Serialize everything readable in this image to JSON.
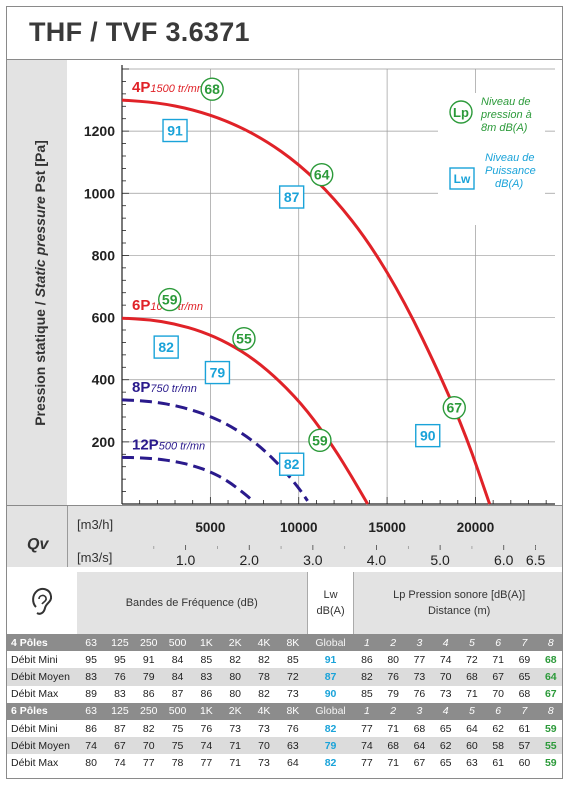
{
  "title": "THF / TVF 3.6371",
  "chart_data": {
    "type": "line",
    "ylabel_regular": "Pression statique / ",
    "ylabel_italic": "Static pressure",
    "ylabel_unit": " Pst [Pa]",
    "ylim": [
      0,
      1400
    ],
    "y_ticks": [
      "1200",
      "1000",
      "800",
      "600",
      "400",
      "200"
    ],
    "x_axis_main": {
      "label": "[m3/h]",
      "ticks": [
        "5000",
        "10000",
        "15000",
        "20000"
      ],
      "xlim": [
        0,
        24500
      ]
    },
    "x_axis_secondary": {
      "label": "[m3/s]",
      "ticks": [
        "1.0",
        "2.0",
        "3.0",
        "4.0",
        "5.0",
        "6.0",
        "6.5"
      ]
    },
    "qv_label": "Qv",
    "series": [
      {
        "name": "4P",
        "speed": "1500 tr/mn",
        "color": "#e02228",
        "style": "solid",
        "x": [
          0,
          2000,
          4000,
          6000,
          8000,
          10000,
          12000,
          14000,
          16000,
          18000,
          19500,
          20800
        ],
        "y": [
          1300,
          1292,
          1270,
          1232,
          1175,
          1095,
          985,
          840,
          650,
          415,
          215,
          0
        ]
      },
      {
        "name": "6P",
        "speed": "1000 tr/mn",
        "color": "#e02228",
        "style": "solid",
        "x": [
          0,
          1500,
          3000,
          4500,
          6000,
          7500,
          9000,
          10500,
          12000,
          13000,
          13900
        ],
        "y": [
          598,
          594,
          580,
          556,
          518,
          465,
          392,
          300,
          180,
          88,
          0
        ]
      },
      {
        "name": "8P",
        "speed": "750 tr/mn",
        "color": "#2a1a8c",
        "style": "dashed",
        "x": [
          0,
          1000,
          2000,
          3000,
          4000,
          5000,
          6000,
          7000,
          8000,
          9000,
          10000,
          10500
        ],
        "y": [
          335,
          333,
          327,
          317,
          302,
          282,
          255,
          220,
          176,
          120,
          52,
          10
        ]
      },
      {
        "name": "12P",
        "speed": "500 tr/mn",
        "color": "#2a1a8c",
        "style": "dashed",
        "x": [
          0,
          1000,
          2000,
          3000,
          4000,
          5000,
          6000,
          7000,
          7400
        ],
        "y": [
          150,
          149,
          145,
          137,
          124,
          104,
          74,
          30,
          10
        ]
      }
    ],
    "annotations": [
      {
        "kind": "lp",
        "value": "68",
        "x": 5100,
        "y": 1335
      },
      {
        "kind": "lw",
        "value": "91",
        "x": 3000,
        "y": 1202
      },
      {
        "kind": "lp",
        "value": "64",
        "x": 11300,
        "y": 1060
      },
      {
        "kind": "lw",
        "value": "87",
        "x": 9600,
        "y": 988
      },
      {
        "kind": "lp",
        "value": "59",
        "x": 2700,
        "y": 658
      },
      {
        "kind": "lw",
        "value": "82",
        "x": 2500,
        "y": 505
      },
      {
        "kind": "lp",
        "value": "55",
        "x": 6900,
        "y": 532
      },
      {
        "kind": "lw",
        "value": "79",
        "x": 5400,
        "y": 423
      },
      {
        "kind": "lp",
        "value": "67",
        "x": 18800,
        "y": 310
      },
      {
        "kind": "lw",
        "value": "90",
        "x": 17300,
        "y": 220
      },
      {
        "kind": "lp",
        "value": "59",
        "x": 11200,
        "y": 205
      },
      {
        "kind": "lw",
        "value": "82",
        "x": 9600,
        "y": 128
      }
    ],
    "legend": {
      "placement": "top-right",
      "lp_symbol": "Lp",
      "lp_text": [
        "Niveau de",
        "pression à",
        "8m dB(A)"
      ],
      "lw_symbol": "Lw",
      "lw_text": [
        "Niveau de",
        "Puissance",
        "dB(A)"
      ]
    },
    "colors": {
      "lp": "#2c9a3a",
      "lw": "#1aa3d9",
      "red": "#e02228",
      "blue": "#2a1a8c"
    }
  },
  "table": {
    "ear_icon": "ear-icon",
    "freq_header": "Bandes de Fréquence (dB)",
    "lw_header": [
      "Lw",
      "dB(A)"
    ],
    "lp_header": [
      "Lp Pression sonore [dB(A)]",
      "Distance (m)"
    ],
    "bands": [
      "63",
      "125",
      "250",
      "500",
      "1K",
      "2K",
      "4K",
      "8K"
    ],
    "global_label": "Global",
    "distances": [
      "1",
      "2",
      "3",
      "4",
      "5",
      "6",
      "7",
      "8"
    ],
    "sections": [
      {
        "name": "4 Pôles",
        "rows": [
          {
            "label": "Débit Mini",
            "bands": [
              "95",
              "95",
              "91",
              "84",
              "85",
              "82",
              "82",
              "85"
            ],
            "lw": "91",
            "lp": [
              "86",
              "80",
              "77",
              "74",
              "72",
              "71",
              "69",
              "68"
            ]
          },
          {
            "label": "Débit Moyen",
            "bands": [
              "83",
              "76",
              "79",
              "84",
              "83",
              "80",
              "78",
              "72"
            ],
            "lw": "87",
            "lp": [
              "82",
              "76",
              "73",
              "70",
              "68",
              "67",
              "65",
              "64"
            ]
          },
          {
            "label": "Débit Max",
            "bands": [
              "89",
              "83",
              "86",
              "87",
              "86",
              "80",
              "82",
              "73"
            ],
            "lw": "90",
            "lp": [
              "85",
              "79",
              "76",
              "73",
              "71",
              "70",
              "68",
              "67"
            ]
          }
        ]
      },
      {
        "name": "6 Pôles",
        "rows": [
          {
            "label": "Débit Mini",
            "bands": [
              "86",
              "87",
              "82",
              "75",
              "76",
              "73",
              "73",
              "76"
            ],
            "lw": "82",
            "lp": [
              "77",
              "71",
              "68",
              "65",
              "64",
              "62",
              "61",
              "59"
            ]
          },
          {
            "label": "Débit Moyen",
            "bands": [
              "74",
              "67",
              "70",
              "75",
              "74",
              "71",
              "70",
              "63"
            ],
            "lw": "79",
            "lp": [
              "74",
              "68",
              "64",
              "62",
              "60",
              "58",
              "57",
              "55"
            ]
          },
          {
            "label": "Débit Max",
            "bands": [
              "80",
              "74",
              "77",
              "78",
              "77",
              "71",
              "73",
              "64"
            ],
            "lw": "82",
            "lp": [
              "77",
              "71",
              "67",
              "65",
              "63",
              "61",
              "60",
              "59"
            ]
          }
        ]
      }
    ]
  }
}
